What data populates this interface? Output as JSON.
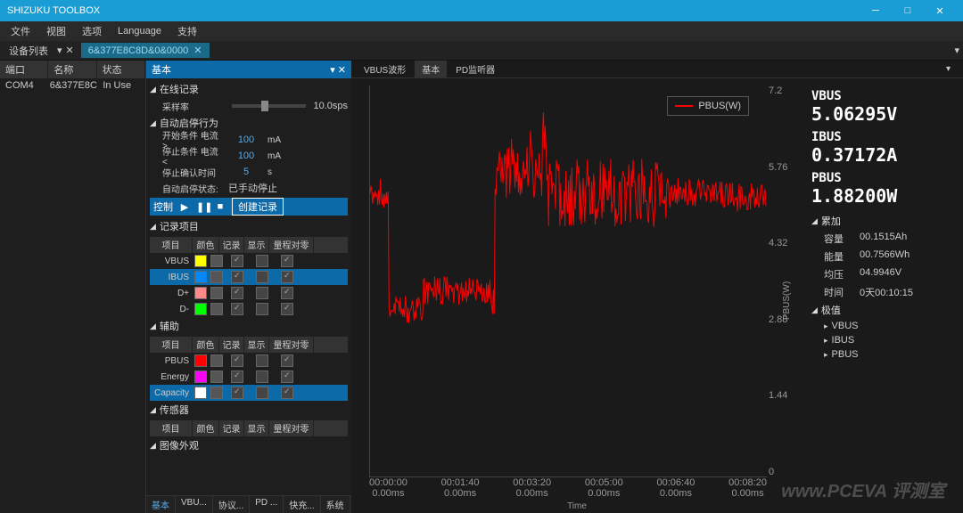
{
  "app_title": "SHIZUKU TOOLBOX",
  "menu": [
    "文件",
    "视图",
    "选项",
    "Language",
    "支持"
  ],
  "toolbar_device_label": "设备列表",
  "doc_tab": "6&377E8C8D&0&0000",
  "device_list": {
    "headers": [
      "端口",
      "名称",
      "状态"
    ],
    "rows": [
      [
        "COM4",
        "6&377E8C",
        "In Use"
      ]
    ]
  },
  "center_dropdown": "基本",
  "online_record": {
    "title": "在线记录",
    "sample_rate_label": "采样率",
    "sample_rate_value": "10.0sps"
  },
  "auto_behavior": {
    "title": "自动启停行为",
    "start_cond_label": "开始条件 电流 >",
    "start_cond_val": "100",
    "start_cond_unit": "mA",
    "stop_cond_label": "停止条件 电流 <",
    "stop_cond_val": "100",
    "stop_cond_unit": "mA",
    "confirm_time_label": "停止确认时间",
    "confirm_time_val": "5",
    "confirm_time_unit": "s",
    "status_label": "自动启停状态:",
    "status_val": "已手动停止"
  },
  "control": {
    "label": "控制",
    "create": "创建记录"
  },
  "record_items": {
    "title": "记录项目",
    "headers": [
      "项目",
      "颜色",
      "记录",
      "显示",
      "量程对零"
    ],
    "rows": [
      {
        "name": "VBUS",
        "color": "#ffff00",
        "rec": true,
        "disp": false,
        "zero": true
      },
      {
        "name": "IBUS",
        "color": "#0088ff",
        "rec": true,
        "disp": false,
        "zero": true,
        "selected": true
      },
      {
        "name": "D+",
        "color": "#ff8888",
        "rec": true,
        "disp": false,
        "zero": true
      },
      {
        "name": "D-",
        "color": "#00ff00",
        "rec": true,
        "disp": false,
        "zero": true
      }
    ]
  },
  "aux": {
    "title": "辅助",
    "headers": [
      "项目",
      "颜色",
      "记录",
      "显示",
      "量程对零"
    ],
    "rows": [
      {
        "name": "PBUS",
        "color": "#ff0000",
        "rec": true,
        "disp": false,
        "zero": true
      },
      {
        "name": "Energy",
        "color": "#ff00ff",
        "rec": true,
        "disp": false,
        "zero": true
      },
      {
        "name": "Capacity",
        "color": "#ffffff",
        "rec": true,
        "disp": false,
        "zero": true,
        "selected": true
      }
    ]
  },
  "sensor": {
    "title": "传感器",
    "headers": [
      "项目",
      "颜色",
      "记录",
      "显示",
      "量程对零"
    ]
  },
  "appearance": {
    "title": "图像外观"
  },
  "bottom_tabs": [
    "基本",
    "VBU...",
    "协议...",
    "PD ...",
    "快充...",
    "系统"
  ],
  "chart_tabs": [
    "VBUS波形",
    "基本",
    "PD监听器"
  ],
  "chart": {
    "legend": "PBUS(W)",
    "ylabel": "PBUS(W)",
    "xlabel": "Time",
    "yticks": [
      "7.2",
      "5.76",
      "4.32",
      "2.88",
      "1.44",
      "0"
    ],
    "xticks": [
      {
        "t": "00:00:00",
        "ms": "0.00ms"
      },
      {
        "t": "00:01:40",
        "ms": "0.00ms"
      },
      {
        "t": "00:03:20",
        "ms": "0.00ms"
      },
      {
        "t": "00:05:00",
        "ms": "0.00ms"
      },
      {
        "t": "00:06:40",
        "ms": "0.00ms"
      },
      {
        "t": "00:08:20",
        "ms": "0.00ms"
      }
    ],
    "series_color": "#ff0000"
  },
  "readout": {
    "vbus": {
      "label": "VBUS",
      "value": "5.06295V"
    },
    "ibus": {
      "label": "IBUS",
      "value": "0.37172A"
    },
    "pbus": {
      "label": "PBUS",
      "value": "1.88200W"
    },
    "accum": {
      "title": "累加",
      "capacity_l": "容量",
      "capacity_v": "00.1515Ah",
      "energy_l": "能量",
      "energy_v": "00.7566Wh",
      "avg_l": "均压",
      "avg_v": "04.9946V",
      "time_l": "时间",
      "time_v": "0天00:10:15"
    },
    "extremes": {
      "title": "极值",
      "items": [
        "VBUS",
        "IBUS",
        "PBUS"
      ]
    }
  },
  "watermark": "www.PCEVA 评测室"
}
